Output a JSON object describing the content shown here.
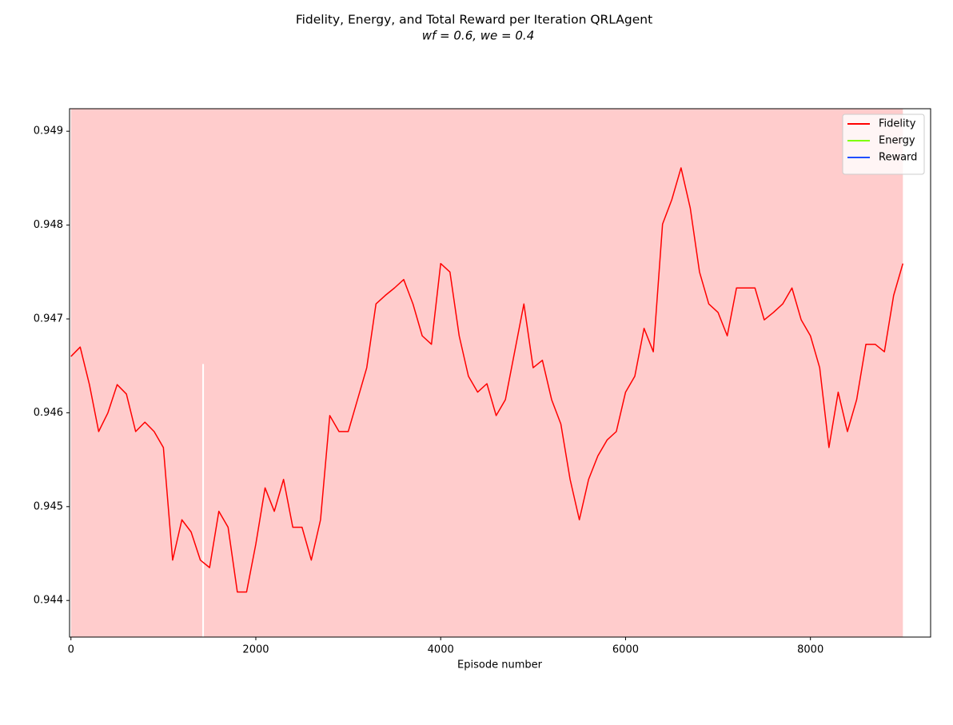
{
  "chart_data": {
    "type": "line",
    "title": "Fidelity, Energy, and Total Reward per Iteration QRLAgent",
    "subtitle": "wf = 0.6, we = 0.4",
    "xlabel": "Episode number",
    "x": [
      0,
      100,
      200,
      300,
      400,
      500,
      600,
      700,
      800,
      900,
      1000,
      1100,
      1200,
      1300,
      1400,
      1500,
      1600,
      1700,
      1800,
      1900,
      2000,
      2100,
      2200,
      2300,
      2400,
      2500,
      2600,
      2700,
      2800,
      2900,
      3000,
      3100,
      3200,
      3300,
      3400,
      3500,
      3600,
      3700,
      3800,
      3900,
      4000,
      4100,
      4200,
      4300,
      4400,
      4500,
      4600,
      4700,
      4800,
      4900,
      5000,
      5100,
      5200,
      5300,
      5400,
      5500,
      5600,
      5700,
      5800,
      5900,
      6000,
      6100,
      6200,
      6300,
      6400,
      6500,
      6600,
      6700,
      6800,
      6900,
      7000,
      7100,
      7200,
      7300,
      7400,
      7500,
      7600,
      7700,
      7800,
      7900,
      8000,
      8100,
      8200,
      8300,
      8400,
      8500,
      8600,
      8700,
      8800,
      8900,
      9000
    ],
    "series": [
      {
        "name": "Fidelity",
        "color": "#ff0000",
        "values": [
          0.9466,
          0.9467,
          0.9463,
          0.9458,
          0.946,
          0.9463,
          0.9462,
          0.9458,
          0.9459,
          0.9458,
          0.94563,
          0.94443,
          0.94486,
          0.94473,
          0.94443,
          0.94435,
          0.94495,
          0.94478,
          0.94409,
          0.94409,
          0.9446,
          0.9452,
          0.94495,
          0.94529,
          0.94478,
          0.94478,
          0.94443,
          0.94486,
          0.94597,
          0.9458,
          0.9458,
          0.94614,
          0.94648,
          0.94716,
          0.94725,
          0.94733,
          0.94742,
          0.94716,
          0.94682,
          0.94673,
          0.94759,
          0.9475,
          0.94682,
          0.94639,
          0.94622,
          0.94631,
          0.94597,
          0.94614,
          0.94665,
          0.94716,
          0.94648,
          0.94656,
          0.94614,
          0.94588,
          0.94529,
          0.94486,
          0.94529,
          0.94554,
          0.94571,
          0.9458,
          0.94622,
          0.94639,
          0.9469,
          0.94665,
          0.94801,
          0.94827,
          0.94861,
          0.94818,
          0.9475,
          0.94716,
          0.94707,
          0.94682,
          0.94733,
          0.94733,
          0.94733,
          0.94699,
          0.94707,
          0.94716,
          0.94733,
          0.94699,
          0.94682,
          0.94648,
          0.94563,
          0.94622,
          0.9458,
          0.94614,
          0.94673,
          0.94673,
          0.94665,
          0.94725,
          0.94759
        ]
      },
      {
        "name": "Energy",
        "color": "#7fff00",
        "values": [
          null,
          null,
          null,
          null,
          null,
          null,
          null,
          null,
          null,
          null,
          null,
          null,
          null,
          null,
          null,
          null,
          null,
          null,
          null,
          null,
          null,
          null,
          null,
          null,
          null,
          null,
          null,
          null,
          null,
          null,
          null,
          null,
          null,
          null,
          null,
          null,
          null,
          null,
          null,
          null,
          null,
          null,
          null,
          null,
          null,
          null,
          null,
          null,
          null,
          null,
          null,
          null,
          null,
          null,
          null,
          null,
          null,
          null,
          null,
          null,
          null,
          null,
          null,
          null,
          null,
          null,
          null,
          null,
          null,
          null,
          null,
          null,
          null,
          null,
          null,
          null,
          null,
          null,
          null,
          null,
          null,
          null,
          null,
          null,
          null,
          null,
          null,
          null,
          null,
          null,
          null
        ]
      },
      {
        "name": "Reward",
        "color": "#1f4fff",
        "values": [
          null,
          null,
          null,
          null,
          null,
          null,
          null,
          null,
          null,
          null,
          null,
          null,
          null,
          null,
          null,
          null,
          null,
          null,
          null,
          null,
          null,
          null,
          null,
          null,
          null,
          null,
          null,
          null,
          null,
          null,
          null,
          null,
          null,
          null,
          null,
          null,
          null,
          null,
          null,
          null,
          null,
          null,
          null,
          null,
          null,
          null,
          null,
          null,
          null,
          null,
          null,
          null,
          null,
          null,
          null,
          null,
          null,
          null,
          null,
          null,
          null,
          null,
          null,
          null,
          null,
          null,
          null,
          null,
          null,
          null,
          null,
          null,
          null,
          null,
          null,
          null,
          null,
          null,
          null,
          null,
          null,
          null,
          null,
          null,
          null,
          null,
          null,
          null,
          null,
          null,
          null
        ]
      }
    ],
    "span": {
      "x": [
        0,
        9000
      ],
      "color": "#ffcccc"
    },
    "vline": {
      "x": 1430,
      "y": [
        0.94361,
        0.94652
      ],
      "color": "#ffffff"
    },
    "xlim": [
      -15,
      9300
    ],
    "ylim": [
      0.94361,
      0.94924
    ],
    "xticks": [
      0,
      2000,
      4000,
      6000,
      8000
    ],
    "yticks": [
      0.944,
      0.945,
      0.946,
      0.947,
      0.948,
      0.949
    ],
    "legend": "upper right"
  }
}
